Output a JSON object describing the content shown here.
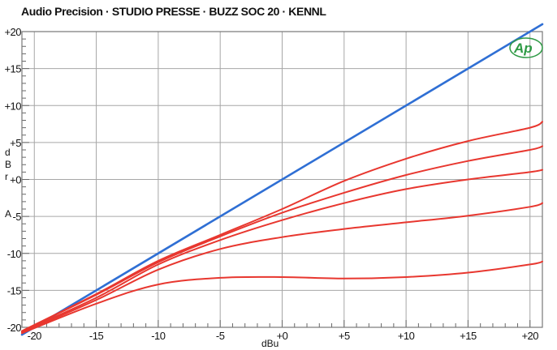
{
  "colors": {
    "background": "#ffffff",
    "grid": "#a6a6a6",
    "frame": "#777777",
    "reference_line": "#2f6fd4",
    "curves": "#e8372f",
    "logo": "#2e9a45"
  },
  "logo": {
    "text": "Ap"
  },
  "chart_data": {
    "type": "line",
    "title": "Audio Precision · STUDIO PRESSE · BUZZ SOC 20 · KENNL",
    "xlabel": "dBu",
    "ylabel": [
      "d",
      "B",
      "r",
      "",
      "A"
    ],
    "xlim": [
      -21,
      21
    ],
    "ylim": [
      -20,
      20
    ],
    "x_ticks": [
      {
        "value": -20,
        "label": "-20"
      },
      {
        "value": -15,
        "label": "-15"
      },
      {
        "value": -10,
        "label": "-10"
      },
      {
        "value": -5,
        "label": "-5"
      },
      {
        "value": 0,
        "label": "+0"
      },
      {
        "value": 5,
        "label": "+5"
      },
      {
        "value": 10,
        "label": "+10"
      },
      {
        "value": 15,
        "label": "+15"
      },
      {
        "value": 20,
        "label": "+20"
      }
    ],
    "y_ticks": [
      {
        "value": 20,
        "label": "+20"
      },
      {
        "value": 15,
        "label": "+15"
      },
      {
        "value": 10,
        "label": "+10"
      },
      {
        "value": 5,
        "label": "+5"
      },
      {
        "value": 0,
        "label": "+0"
      },
      {
        "value": -5,
        "label": "-5"
      },
      {
        "value": -10,
        "label": "-10"
      },
      {
        "value": -15,
        "label": "-15"
      },
      {
        "value": -20,
        "label": "-20"
      }
    ],
    "grid": true,
    "series": [
      {
        "color": "#2f6fd4",
        "x": [
          -21,
          21
        ],
        "y": [
          -21,
          21
        ]
      },
      {
        "color": "#e8372f",
        "x": [
          -21,
          -15,
          -10,
          -5,
          0,
          5,
          10,
          15,
          20,
          21
        ],
        "y": [
          -20.5,
          -15.5,
          -11,
          -7.5,
          -4,
          -0.2,
          2.8,
          5.2,
          7,
          7.8
        ]
      },
      {
        "color": "#e8372f",
        "x": [
          -21,
          -15,
          -10,
          -5,
          0,
          5,
          10,
          15,
          20,
          21
        ],
        "y": [
          -20.5,
          -15.6,
          -11.2,
          -7.7,
          -4.5,
          -1.8,
          0.6,
          2.5,
          4,
          4.5
        ]
      },
      {
        "color": "#e8372f",
        "x": [
          -21,
          -15,
          -10,
          -5,
          0,
          5,
          10,
          15,
          20,
          21
        ],
        "y": [
          -20.6,
          -16,
          -11.5,
          -8.2,
          -5.5,
          -3.2,
          -1.3,
          0,
          1,
          1.3
        ]
      },
      {
        "color": "#e8372f",
        "x": [
          -21,
          -15,
          -10,
          -5,
          0,
          5,
          10,
          15,
          20,
          21
        ],
        "y": [
          -20.7,
          -16.3,
          -12.2,
          -9.4,
          -7.8,
          -6.7,
          -5.8,
          -4.9,
          -3.7,
          -3.2
        ]
      },
      {
        "color": "#e8372f",
        "x": [
          -21,
          -15,
          -10,
          -5,
          0,
          5,
          10,
          15,
          20,
          21
        ],
        "y": [
          -20.8,
          -16.8,
          -14.2,
          -13.3,
          -13.2,
          -13.4,
          -13.2,
          -12.6,
          -11.5,
          -11.1
        ]
      }
    ]
  }
}
